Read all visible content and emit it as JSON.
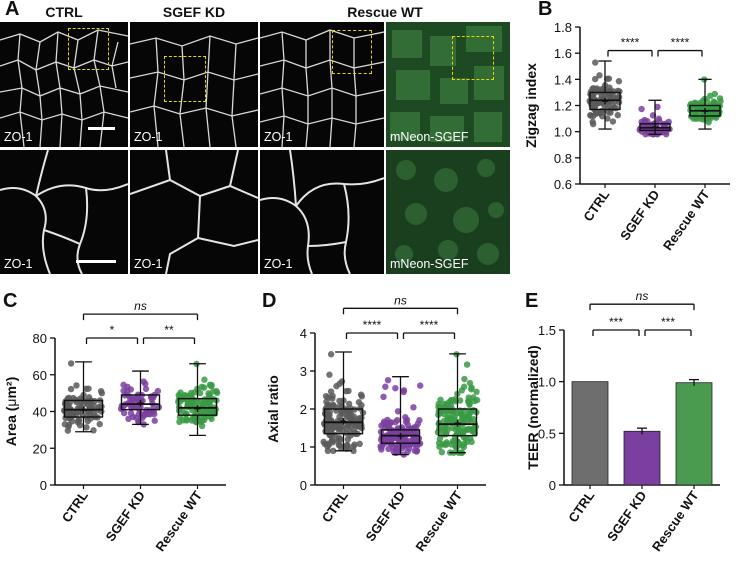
{
  "panel_letters": {
    "a": "A",
    "b": "B",
    "c": "C",
    "d": "D",
    "e": "E"
  },
  "micrograph": {
    "col_titles": [
      "CTRL",
      "SGEF KD",
      "Rescue WT"
    ],
    "labels": {
      "ctrl_top": "ZO-1",
      "kd_top": "ZO-1",
      "wt_top": "ZO-1",
      "neon_top": "mNeon-SGEF",
      "ctrl_bot": "ZO-1",
      "kd_bot": "ZO-1",
      "wt_bot": "ZO-1",
      "neon_bot": "mNeon-SGEF"
    }
  },
  "chart_data": [
    {
      "id": "B",
      "type": "box",
      "ylabel": "Zigzag index",
      "categories": [
        "CTRL",
        "SGEF KD",
        "Rescue WT"
      ],
      "ylim": [
        0.6,
        1.8
      ],
      "yticks": [
        "0.6",
        "0.8",
        "1.0",
        "1.2",
        "1.4",
        "1.6",
        "1.8"
      ],
      "colors": [
        "#5a5a5a",
        "#7b3fa0",
        "#3a9a45"
      ],
      "boxes": [
        {
          "min": 1.02,
          "q1": 1.17,
          "median": 1.24,
          "q3": 1.3,
          "max": 1.54,
          "mean": 1.24,
          "n": 90
        },
        {
          "min": 0.98,
          "q1": 1.01,
          "median": 1.03,
          "q3": 1.06,
          "max": 1.24,
          "mean": 1.04,
          "n": 70
        },
        {
          "min": 1.02,
          "q1": 1.12,
          "median": 1.16,
          "q3": 1.2,
          "max": 1.4,
          "mean": 1.16,
          "n": 80
        }
      ],
      "sig": [
        {
          "from": 0,
          "to": 1,
          "label": "****",
          "level": 1.62
        },
        {
          "from": 1,
          "to": 2,
          "label": "****",
          "level": 1.62
        }
      ]
    },
    {
      "id": "C",
      "type": "box",
      "ylabel_pre": "Area (",
      "ylabel_mu": "μ",
      "ylabel_post": "m²)",
      "categories": [
        "CTRL",
        "SGEF KD",
        "Rescue WT"
      ],
      "ylim": [
        0,
        80
      ],
      "yticks": [
        "0",
        "20",
        "40",
        "60",
        "80"
      ],
      "colors": [
        "#5a5a5a",
        "#7b3fa0",
        "#3a9a45"
      ],
      "boxes": [
        {
          "min": 29,
          "q1": 37,
          "median": 41,
          "q3": 46,
          "max": 67,
          "mean": 41,
          "n": 90
        },
        {
          "min": 33,
          "q1": 41,
          "median": 44,
          "q3": 49,
          "max": 62,
          "mean": 45,
          "n": 70
        },
        {
          "min": 27,
          "q1": 38,
          "median": 42,
          "q3": 47,
          "max": 66,
          "mean": 42,
          "n": 110
        }
      ],
      "sig": [
        {
          "from": 0,
          "to": 1,
          "label": "*",
          "level": 80
        },
        {
          "from": 1,
          "to": 2,
          "label": "**",
          "level": 80
        },
        {
          "from": 0,
          "to": 2,
          "label": "ns",
          "level": 93
        }
      ]
    },
    {
      "id": "D",
      "type": "box",
      "ylabel": "Axial ratio",
      "categories": [
        "CTRL",
        "SGEF KD",
        "Rescue WT"
      ],
      "ylim": [
        0,
        4
      ],
      "yticks": [
        "0",
        "1",
        "2",
        "3",
        "4"
      ],
      "colors": [
        "#5a5a5a",
        "#7b3fa0",
        "#3a9a45"
      ],
      "boxes": [
        {
          "min": 0.9,
          "q1": 1.35,
          "median": 1.65,
          "q3": 2.0,
          "max": 3.5,
          "mean": 1.7,
          "n": 150
        },
        {
          "min": 0.8,
          "q1": 1.1,
          "median": 1.3,
          "q3": 1.45,
          "max": 2.85,
          "mean": 1.3,
          "n": 140
        },
        {
          "min": 0.85,
          "q1": 1.3,
          "median": 1.6,
          "q3": 2.0,
          "max": 3.45,
          "mean": 1.65,
          "n": 150
        }
      ],
      "sig": [
        {
          "from": 0,
          "to": 1,
          "label": "****",
          "level": 4.0
        },
        {
          "from": 1,
          "to": 2,
          "label": "****",
          "level": 4.0
        },
        {
          "from": 0,
          "to": 2,
          "label": "ns",
          "level": 4.65
        }
      ]
    },
    {
      "id": "E",
      "type": "bar",
      "ylabel": "TEER (normalized)",
      "categories": [
        "CTRL",
        "SGEF KD",
        "Rescue WT"
      ],
      "values": [
        1.0,
        0.52,
        0.99
      ],
      "errors": [
        0,
        0.03,
        0.03
      ],
      "ylim": [
        0,
        1.5
      ],
      "yticks": [
        "0",
        "0.5",
        "1.0",
        "1.5"
      ],
      "colors": [
        "#6e6e6e",
        "#7b3fa0",
        "#4a9a50"
      ],
      "sig": [
        {
          "from": 0,
          "to": 1,
          "label": "***",
          "level": 1.5
        },
        {
          "from": 1,
          "to": 2,
          "label": "***",
          "level": 1.5
        },
        {
          "from": 0,
          "to": 2,
          "label": "ns",
          "level": 1.75
        }
      ]
    }
  ]
}
